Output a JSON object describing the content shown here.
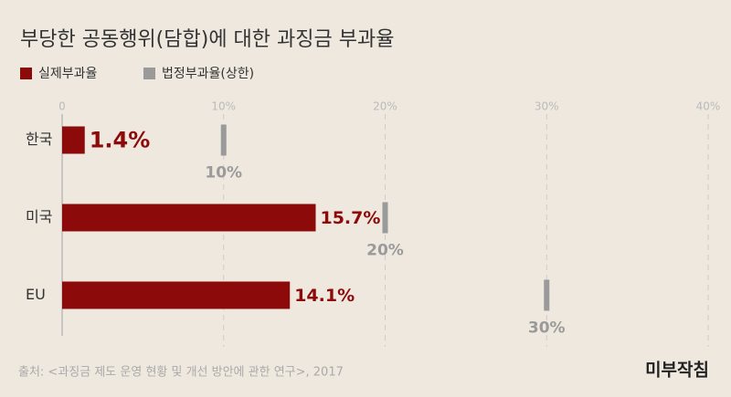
{
  "chart_data": {
    "type": "bar",
    "orientation": "horizontal",
    "title": "부당한 공동행위(담합)에 대한 과징금 부과율",
    "categories": [
      "한국",
      "미국",
      "EU"
    ],
    "series": [
      {
        "name": "실제부과율",
        "color": "#8c0a0a",
        "values": [
          1.4,
          15.7,
          14.1
        ],
        "value_labels": [
          "1.4%",
          "15.7%",
          "14.1%"
        ]
      },
      {
        "name": "법정부과율(상한)",
        "color": "#9a9a9a",
        "values": [
          10,
          20,
          30
        ],
        "value_labels": [
          "10%",
          "20%",
          "30%"
        ]
      }
    ],
    "xlim": [
      0,
      40
    ],
    "xticks": [
      0,
      {
        "value": 10,
        "label": "10%"
      },
      {
        "value": 20,
        "label": "20%"
      },
      {
        "value": 30,
        "label": "30%"
      },
      {
        "value": 40,
        "label": "40%"
      }
    ],
    "grid": true,
    "legend": "top-left"
  },
  "source": "출처: <과징금 제도 운영 현황 및 개선 방안에 관한 연구>, 2017",
  "logo": "미부작침"
}
